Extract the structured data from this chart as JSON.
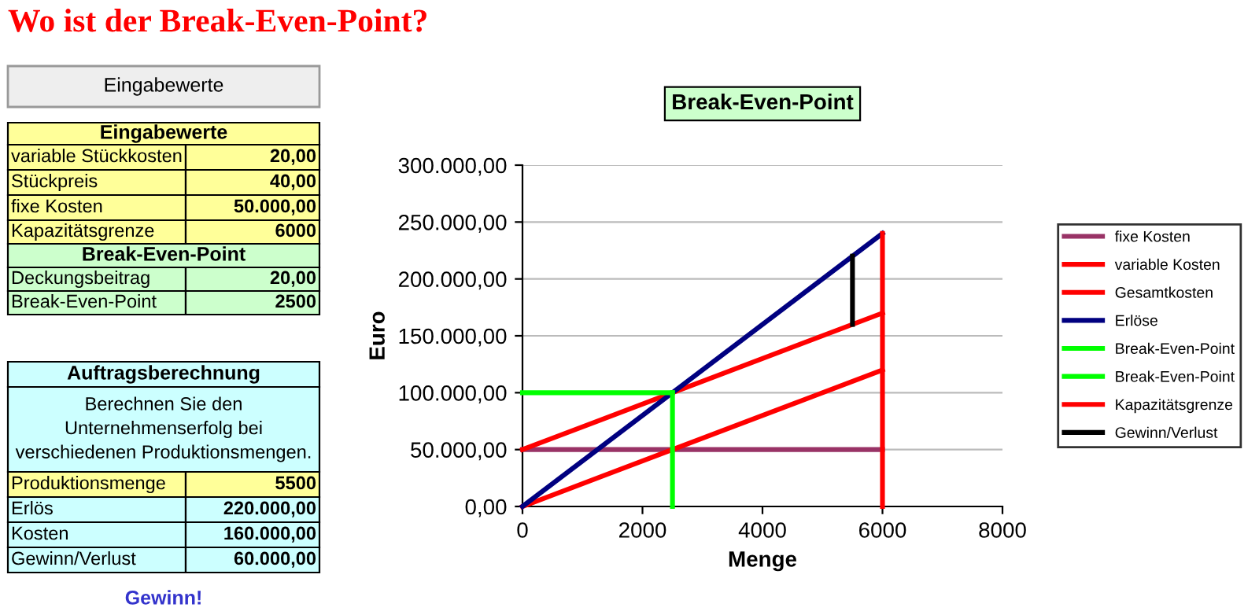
{
  "chart_data": [
    {
      "type": "other",
      "title": "Wo ist der Break-Even-Point?",
      "annotations": [
        "Eingabewerte",
        "Eingabewerte",
        "variable Stückkosten",
        "20,00",
        "Stückpreis",
        "40,00",
        "fixe Kosten",
        "50.000,00",
        "Kapazitätsgrenze",
        "6000",
        "Break-Even-Point",
        "Deckungsbeitrag",
        "20,00",
        "Break-Even-Point",
        "2500",
        "Auftragsberechnung",
        "Berechnen Sie den\nUnternehmenserfolg bei\nverschiedenen Produktionsmengen.",
        "Produktionsmenge",
        "5500",
        "Erlös",
        "220.000,00",
        "Kosten",
        "160.000,00",
        "Gewinn/Verlust",
        "60.000,00",
        "Gewinn!"
      ]
    },
    {
      "type": "line",
      "title": "Break-Even-Point",
      "xlabel": "Menge",
      "ylabel": "Euro",
      "xlim": [
        0,
        8000
      ],
      "xticks": [
        0,
        2000,
        4000,
        6000,
        8000
      ],
      "ylim": [
        0,
        300000
      ],
      "yticks": [
        {
          "value": 0,
          "label": "0,00"
        },
        {
          "value": 50000,
          "label": "50.000,00"
        },
        {
          "value": 100000,
          "label": "100.000,00"
        },
        {
          "value": 150000,
          "label": "150.000,00"
        },
        {
          "value": 200000,
          "label": "200.000,00"
        },
        {
          "value": 250000,
          "label": "250.000,00"
        },
        {
          "value": 300000,
          "label": "300.000,00"
        }
      ],
      "grid": "y",
      "legend": "right",
      "series": [
        {
          "name": "fixe Kosten",
          "color": "#993366",
          "x": [
            0,
            6000
          ],
          "values": [
            50000,
            50000
          ]
        },
        {
          "name": "variable Kosten",
          "color": "#ff0000",
          "x": [
            0,
            6000
          ],
          "values": [
            0,
            120000
          ]
        },
        {
          "name": "Gesamtkosten",
          "color": "#ff0000",
          "x": [
            0,
            6000
          ],
          "values": [
            50000,
            170000
          ]
        },
        {
          "name": "Erlöse",
          "color": "#000080",
          "x": [
            0,
            6000
          ],
          "values": [
            0,
            240000
          ]
        },
        {
          "name": "Break-Even-Point",
          "color": "#00ff00",
          "x": [
            0,
            2500
          ],
          "values": [
            100000,
            100000
          ]
        },
        {
          "name": "Break-Even-Point",
          "color": "#00ff00",
          "x": [
            2500,
            2500
          ],
          "values": [
            0,
            100000
          ]
        },
        {
          "name": "Kapazitätsgrenze",
          "color": "#ff0000",
          "x": [
            6000,
            6000
          ],
          "values": [
            0,
            240000
          ]
        },
        {
          "name": "Gewinn/Verlust",
          "color": "#000000",
          "x": [
            5500,
            5500
          ],
          "values": [
            160000,
            220000
          ]
        }
      ]
    }
  ]
}
